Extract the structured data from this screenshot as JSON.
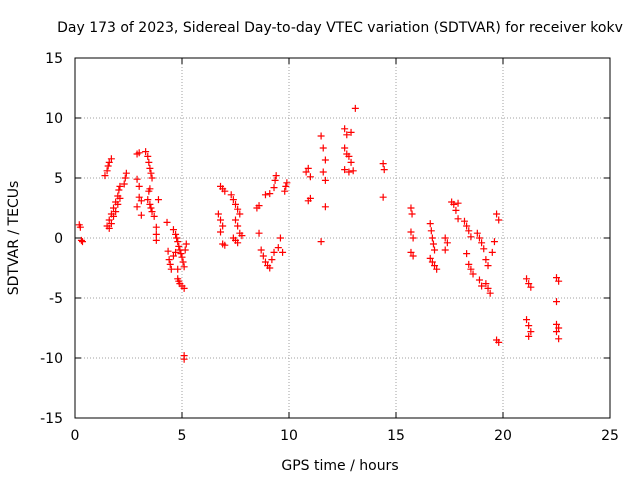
{
  "chart_data": {
    "type": "scatter",
    "title": "Day 173 of 2023, Sidereal Day-to-day VTEC variation (SDTVAR) for receiver kokv",
    "xlabel": "GPS time / hours",
    "ylabel": "SDTVAR / TECUs",
    "xlim": [
      0,
      25
    ],
    "ylim": [
      -15,
      15
    ],
    "xticks": [
      0,
      5,
      10,
      15,
      20,
      25
    ],
    "yticks": [
      -15,
      -10,
      -5,
      0,
      5,
      10,
      15
    ],
    "grid": true,
    "marker": "+",
    "marker_color": "#ff0000",
    "series": [
      {
        "name": "SDTVAR",
        "points": [
          [
            0.2,
            1.1
          ],
          [
            0.25,
            0.9
          ],
          [
            0.3,
            -0.2
          ],
          [
            0.35,
            -0.3
          ],
          [
            1.4,
            5.2
          ],
          [
            1.5,
            5.6
          ],
          [
            1.55,
            6.0
          ],
          [
            1.6,
            6.3
          ],
          [
            1.7,
            6.6
          ],
          [
            1.5,
            1.0
          ],
          [
            1.6,
            1.5
          ],
          [
            1.7,
            2.0
          ],
          [
            1.8,
            2.5
          ],
          [
            1.9,
            3.0
          ],
          [
            2.0,
            3.5
          ],
          [
            2.05,
            4.0
          ],
          [
            2.1,
            4.3
          ],
          [
            1.6,
            0.8
          ],
          [
            1.7,
            1.2
          ],
          [
            1.8,
            1.8
          ],
          [
            1.9,
            2.2
          ],
          [
            2.0,
            2.8
          ],
          [
            2.1,
            3.3
          ],
          [
            2.3,
            4.5
          ],
          [
            2.35,
            5.0
          ],
          [
            2.4,
            5.4
          ],
          [
            2.9,
            7.0
          ],
          [
            3.0,
            7.1
          ],
          [
            2.9,
            4.9
          ],
          [
            3.0,
            4.3
          ],
          [
            3.0,
            3.4
          ],
          [
            3.1,
            3.1
          ],
          [
            2.9,
            2.6
          ],
          [
            3.1,
            1.9
          ],
          [
            3.3,
            7.2
          ],
          [
            3.4,
            6.8
          ],
          [
            3.45,
            6.3
          ],
          [
            3.5,
            5.8
          ],
          [
            3.55,
            5.4
          ],
          [
            3.6,
            5.0
          ],
          [
            3.5,
            4.1
          ],
          [
            3.45,
            3.9
          ],
          [
            3.4,
            3.2
          ],
          [
            3.5,
            2.8
          ],
          [
            3.55,
            2.5
          ],
          [
            3.6,
            2.2
          ],
          [
            3.7,
            1.8
          ],
          [
            3.9,
            3.2
          ],
          [
            3.8,
            0.9
          ],
          [
            3.8,
            0.3
          ],
          [
            3.8,
            -0.2
          ],
          [
            4.3,
            1.3
          ],
          [
            4.35,
            -1.1
          ],
          [
            4.4,
            -1.8
          ],
          [
            4.45,
            -2.2
          ],
          [
            4.5,
            -2.6
          ],
          [
            4.6,
            0.7
          ],
          [
            4.7,
            0.3
          ],
          [
            4.75,
            0.0
          ],
          [
            4.8,
            -0.3
          ],
          [
            4.85,
            -0.7
          ],
          [
            4.9,
            -1.0
          ],
          [
            4.95,
            -1.3
          ],
          [
            5.0,
            -1.6
          ],
          [
            5.05,
            -2.0
          ],
          [
            5.1,
            -2.4
          ],
          [
            4.6,
            -1.5
          ],
          [
            4.7,
            -1.2
          ],
          [
            4.8,
            -2.6
          ],
          [
            4.8,
            -3.4
          ],
          [
            4.85,
            -3.6
          ],
          [
            4.9,
            -3.8
          ],
          [
            5.0,
            -4.0
          ],
          [
            5.1,
            -4.2
          ],
          [
            5.15,
            -1.0
          ],
          [
            5.2,
            -0.5
          ],
          [
            5.1,
            -9.8
          ],
          [
            5.1,
            -10.1
          ],
          [
            6.8,
            4.3
          ],
          [
            6.9,
            4.1
          ],
          [
            7.0,
            3.9
          ],
          [
            6.7,
            2.0
          ],
          [
            6.8,
            1.5
          ],
          [
            6.9,
            1.0
          ],
          [
            6.8,
            0.5
          ],
          [
            6.9,
            -0.5
          ],
          [
            7.0,
            -0.6
          ],
          [
            7.3,
            3.6
          ],
          [
            7.4,
            3.2
          ],
          [
            7.5,
            2.8
          ],
          [
            7.6,
            2.4
          ],
          [
            7.7,
            2.0
          ],
          [
            7.5,
            1.5
          ],
          [
            7.6,
            1.0
          ],
          [
            7.7,
            0.4
          ],
          [
            7.4,
            0.0
          ],
          [
            7.5,
            -0.2
          ],
          [
            7.6,
            -0.4
          ],
          [
            7.8,
            0.2
          ],
          [
            8.5,
            2.5
          ],
          [
            8.6,
            2.7
          ],
          [
            8.9,
            3.6
          ],
          [
            9.1,
            3.7
          ],
          [
            9.3,
            4.2
          ],
          [
            9.35,
            4.8
          ],
          [
            9.4,
            5.2
          ],
          [
            8.6,
            0.4
          ],
          [
            8.7,
            -1.0
          ],
          [
            8.8,
            -1.5
          ],
          [
            8.9,
            -2.0
          ],
          [
            9.0,
            -2.3
          ],
          [
            9.1,
            -2.5
          ],
          [
            9.2,
            -1.8
          ],
          [
            9.3,
            -1.2
          ],
          [
            9.5,
            -0.8
          ],
          [
            9.6,
            0.0
          ],
          [
            9.7,
            -1.2
          ],
          [
            9.8,
            3.9
          ],
          [
            9.85,
            4.3
          ],
          [
            9.9,
            4.6
          ],
          [
            10.8,
            5.5
          ],
          [
            10.9,
            5.8
          ],
          [
            11.0,
            5.1
          ],
          [
            11.0,
            3.3
          ],
          [
            10.9,
            3.1
          ],
          [
            11.5,
            8.5
          ],
          [
            11.6,
            7.5
          ],
          [
            11.7,
            6.5
          ],
          [
            11.6,
            5.5
          ],
          [
            11.7,
            4.8
          ],
          [
            11.5,
            -0.3
          ],
          [
            11.7,
            2.6
          ],
          [
            12.6,
            9.1
          ],
          [
            12.7,
            8.6
          ],
          [
            12.9,
            8.8
          ],
          [
            12.6,
            7.5
          ],
          [
            12.7,
            7.0
          ],
          [
            12.8,
            6.8
          ],
          [
            12.9,
            6.3
          ],
          [
            12.6,
            5.7
          ],
          [
            12.8,
            5.5
          ],
          [
            13.0,
            5.6
          ],
          [
            13.1,
            10.8
          ],
          [
            14.4,
            6.2
          ],
          [
            14.45,
            5.7
          ],
          [
            14.4,
            3.4
          ],
          [
            15.7,
            2.5
          ],
          [
            15.75,
            2.0
          ],
          [
            15.7,
            0.5
          ],
          [
            15.8,
            0.0
          ],
          [
            15.7,
            -1.2
          ],
          [
            15.8,
            -1.5
          ],
          [
            16.6,
            1.2
          ],
          [
            16.65,
            0.6
          ],
          [
            16.7,
            0.0
          ],
          [
            16.75,
            -0.5
          ],
          [
            16.8,
            -1.0
          ],
          [
            16.6,
            -1.7
          ],
          [
            16.7,
            -2.0
          ],
          [
            16.8,
            -2.3
          ],
          [
            16.9,
            -2.6
          ],
          [
            17.3,
            0.0
          ],
          [
            17.4,
            -0.4
          ],
          [
            17.3,
            -1.0
          ],
          [
            17.6,
            3.0
          ],
          [
            17.7,
            2.8
          ],
          [
            17.8,
            2.3
          ],
          [
            17.9,
            2.9
          ],
          [
            17.9,
            1.6
          ],
          [
            18.2,
            1.4
          ],
          [
            18.3,
            1.0
          ],
          [
            18.4,
            0.6
          ],
          [
            18.5,
            0.1
          ],
          [
            18.3,
            -1.3
          ],
          [
            18.4,
            -2.2
          ],
          [
            18.5,
            -2.6
          ],
          [
            18.6,
            -3.0
          ],
          [
            18.8,
            0.4
          ],
          [
            18.9,
            0.0
          ],
          [
            19.0,
            -0.4
          ],
          [
            19.1,
            -0.9
          ],
          [
            19.2,
            -1.8
          ],
          [
            19.3,
            -2.3
          ],
          [
            19.2,
            -3.8
          ],
          [
            19.3,
            -4.2
          ],
          [
            19.4,
            -4.6
          ],
          [
            18.9,
            -3.5
          ],
          [
            19.0,
            -4.0
          ],
          [
            19.5,
            -1.2
          ],
          [
            19.6,
            -0.3
          ],
          [
            19.7,
            2.0
          ],
          [
            19.8,
            1.5
          ],
          [
            19.7,
            -8.5
          ],
          [
            19.8,
            -8.7
          ],
          [
            21.1,
            -3.4
          ],
          [
            21.2,
            -3.8
          ],
          [
            21.3,
            -4.1
          ],
          [
            21.1,
            -6.8
          ],
          [
            21.2,
            -7.3
          ],
          [
            21.3,
            -7.8
          ],
          [
            21.2,
            -8.2
          ],
          [
            22.5,
            -3.3
          ],
          [
            22.6,
            -3.6
          ],
          [
            22.5,
            -5.3
          ],
          [
            22.5,
            -7.2
          ],
          [
            22.6,
            -7.5
          ],
          [
            22.5,
            -7.8
          ],
          [
            22.6,
            -8.4
          ]
        ]
      }
    ]
  }
}
